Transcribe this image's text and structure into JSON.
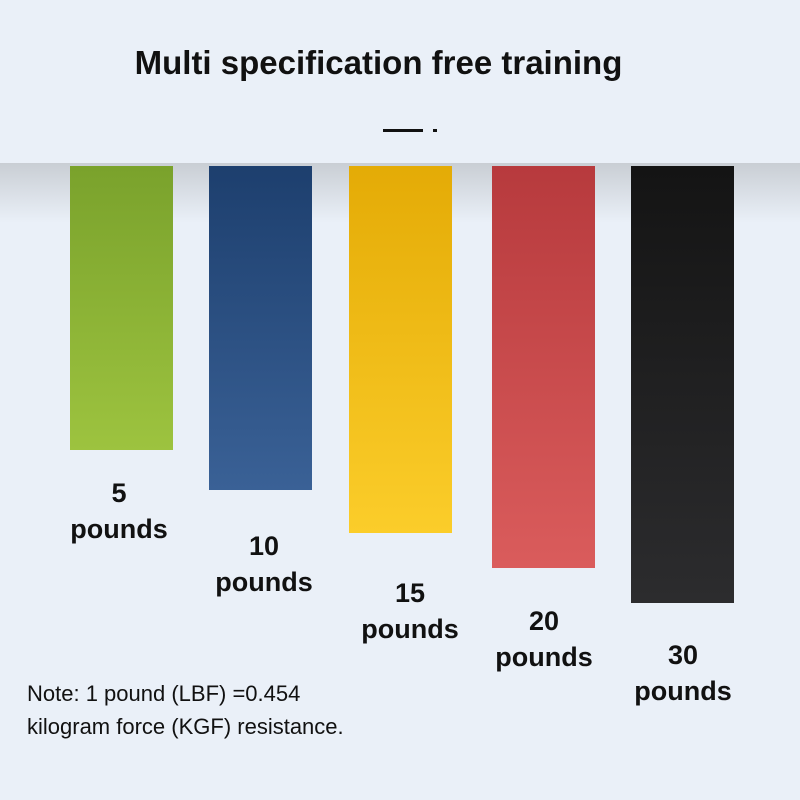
{
  "title": "Multi specification free training",
  "bands": [
    {
      "weight": "5",
      "unit": "pounds"
    },
    {
      "weight": "10",
      "unit": "pounds"
    },
    {
      "weight": "15",
      "unit": "pounds"
    },
    {
      "weight": "20",
      "unit": "pounds"
    },
    {
      "weight": "30",
      "unit": "pounds"
    }
  ],
  "note": [
    "Note: 1 pound (LBF) =0.454",
    "kilogram force (KGF) resistance."
  ]
}
